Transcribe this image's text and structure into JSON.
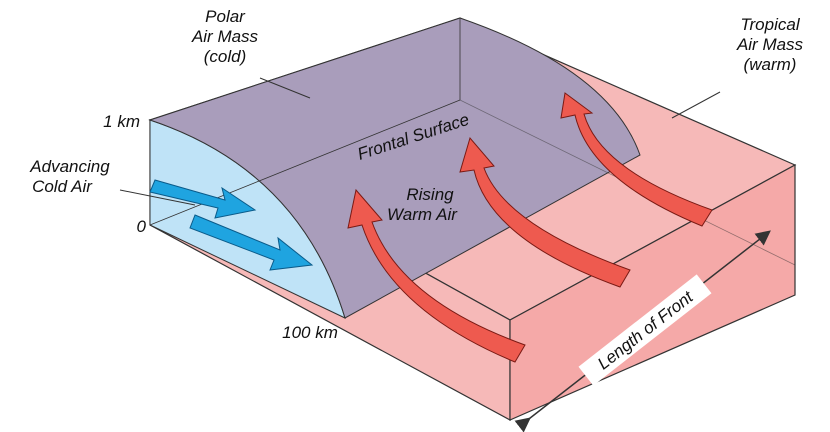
{
  "labels": {
    "polar_air_mass": [
      "Polar",
      "Air Mass",
      "(cold)"
    ],
    "tropical_air_mass": [
      "Tropical",
      "Air Mass",
      "(warm)"
    ],
    "height_top": "1 km",
    "height_bottom": "0",
    "distance": "100 km",
    "advancing_cold_air": [
      "Advancing",
      "Cold Air"
    ],
    "frontal_surface": "Frontal Surface",
    "rising_warm_air": [
      "Rising",
      "Warm Air"
    ],
    "length_of_front": "Length of Front"
  }
}
